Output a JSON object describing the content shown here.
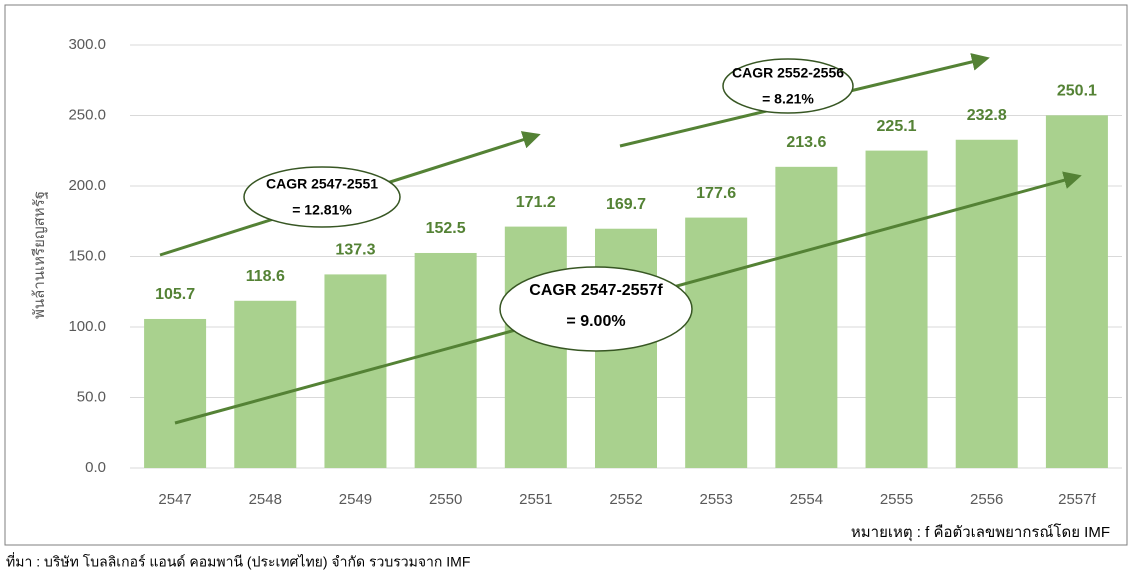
{
  "chart_data": {
    "type": "bar",
    "y_label": "พันล้านเหรียญสหรัฐ",
    "categories": [
      "2547",
      "2548",
      "2549",
      "2550",
      "2551",
      "2552",
      "2553",
      "2554",
      "2555",
      "2556",
      "2557f"
    ],
    "values": [
      105.7,
      118.6,
      137.3,
      152.5,
      171.2,
      169.7,
      177.6,
      213.6,
      225.1,
      232.8,
      250.1
    ],
    "color": "#a9d18e",
    "label_color": "#548235",
    "ylim": [
      0,
      300
    ],
    "yticks": [
      {
        "value": 0,
        "label": "0.0"
      },
      {
        "value": 50,
        "label": "50.0"
      },
      {
        "value": 100,
        "label": "100.0"
      },
      {
        "value": 150,
        "label": "150.0"
      },
      {
        "value": 200,
        "label": "200.0"
      },
      {
        "value": 250,
        "label": "250.0"
      },
      {
        "value": 300,
        "label": "300.0"
      }
    ],
    "grid": true,
    "annotations": [
      {
        "title": "CAGR 2547-2551",
        "value": "= 12.81%"
      },
      {
        "title": "CAGR 2552-2556",
        "value": "= 8.21%"
      },
      {
        "title": "CAGR 2547-2557f",
        "value": "= 9.00%"
      }
    ],
    "note": "หมายเหตุ : f คือตัวเลขพยากรณ์โดย IMF",
    "source": "ที่มา : บริษัท โบลลิเกอร์ แอนด์ คอมพานี (ประเทศไทย) จำกัด รวบรวมจาก IMF"
  }
}
